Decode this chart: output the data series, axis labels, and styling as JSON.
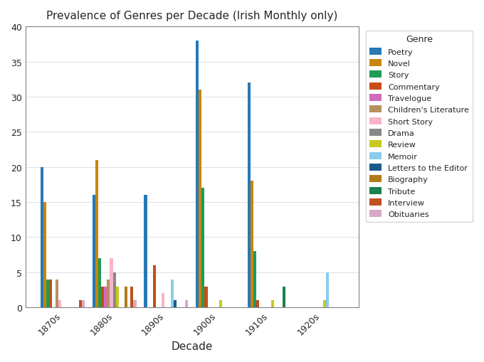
{
  "title": "Prevalence of Genres per Decade (Irish Monthly only)",
  "xlabel": "Decade",
  "ylabel": "",
  "decades": [
    "1870s",
    "1880s",
    "1890s",
    "1900s",
    "1910s",
    "1920s"
  ],
  "genres": [
    "Poetry",
    "Novel",
    "Story",
    "Commentary",
    "Travelogue",
    "Children's Literature",
    "Short Story",
    "Drama",
    "Review",
    "Memoir",
    "Letters to the Editor",
    "Biography",
    "Tribute",
    "Interview",
    "Obituaries"
  ],
  "colors": [
    "#2878b5",
    "#c8860a",
    "#1f9c56",
    "#c94c18",
    "#d06cba",
    "#b89060",
    "#f9b4c8",
    "#888888",
    "#c8c820",
    "#88ccee",
    "#1a5a8a",
    "#b07c18",
    "#1a8050",
    "#c05020",
    "#d8a8c8"
  ],
  "data": {
    "Poetry": [
      20,
      16,
      16,
      38,
      32,
      0
    ],
    "Novel": [
      15,
      21,
      0,
      31,
      18,
      0
    ],
    "Story": [
      4,
      7,
      0,
      17,
      8,
      0
    ],
    "Commentary": [
      4,
      3,
      6,
      3,
      1,
      0
    ],
    "Travelogue": [
      0,
      3,
      0,
      0,
      0,
      0
    ],
    "Children's Literature": [
      4,
      4,
      0,
      0,
      0,
      0
    ],
    "Short Story": [
      1,
      7,
      2,
      0,
      0,
      0
    ],
    "Drama": [
      0,
      5,
      0,
      0,
      0,
      0
    ],
    "Review": [
      0,
      3,
      0,
      1,
      1,
      1
    ],
    "Memoir": [
      0,
      0,
      4,
      0,
      0,
      5
    ],
    "Letters to the Editor": [
      0,
      0,
      1,
      0,
      0,
      0
    ],
    "Biography": [
      0,
      3,
      0,
      0,
      0,
      0
    ],
    "Tribute": [
      0,
      0,
      0,
      0,
      3,
      0
    ],
    "Interview": [
      1,
      3,
      0,
      0,
      0,
      0
    ],
    "Obituaries": [
      1,
      1,
      1,
      0,
      0,
      0
    ]
  },
  "figsize": [
    6.8,
    5.1
  ],
  "dpi": 100,
  "ylim": [
    0,
    40
  ],
  "yticks": [
    0,
    5,
    10,
    15,
    20,
    25,
    30,
    35,
    40
  ]
}
